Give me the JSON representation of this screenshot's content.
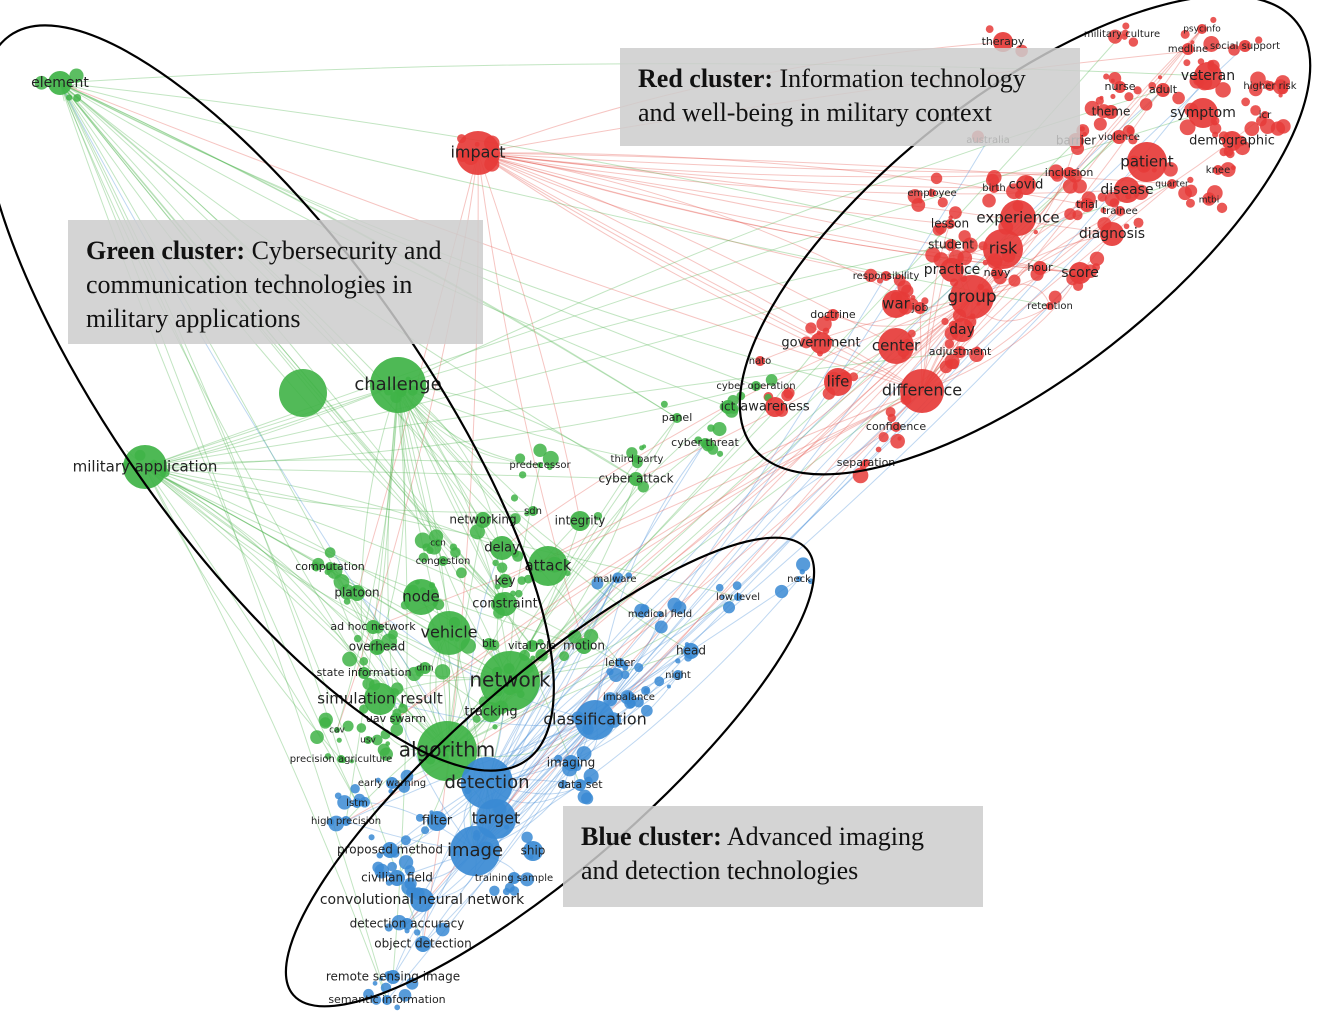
{
  "clusters": [
    {
      "name": "Red cluster:",
      "description": "Information technology and well-being in military context",
      "nodes": [
        "therapy",
        "military culture",
        "psycinfo",
        "medline",
        "social support",
        "nurse",
        "adult",
        "veteran",
        "higher risk",
        "theme",
        "symptom",
        "icr",
        "australia",
        "barrier",
        "violence",
        "demographic",
        "patient",
        "inclusion",
        "knee",
        "birth",
        "covid",
        "quarter",
        "disease",
        "employee",
        "trial",
        "mtbi",
        "trainee",
        "lesson",
        "experience",
        "diagnosis",
        "student",
        "risk",
        "responsibility",
        "practice",
        "navy",
        "hour",
        "score",
        "war",
        "job",
        "group",
        "retention",
        "doctrine",
        "day",
        "government",
        "center",
        "adjustment",
        "nato",
        "life",
        "difference",
        "confidence",
        "separation",
        "impact",
        "awareness"
      ]
    },
    {
      "name": "Green cluster:",
      "description": "Cybersecurity and communication technologies in military applications",
      "nodes": [
        "element",
        "challenge",
        "military application",
        "predecessor",
        "third party",
        "cyber attack",
        "cyber threat",
        "panel",
        "ict",
        "cyber operation",
        "networking",
        "sdn",
        "integrity",
        "ccn",
        "delay",
        "congestion",
        "computation",
        "attack",
        "key",
        "platoon",
        "node",
        "constraint",
        "ad hoc network",
        "vehicle",
        "bit",
        "vital role",
        "motion",
        "overhead",
        "state information",
        "dnn",
        "network",
        "simulation result",
        "tracking",
        "uav swarm",
        "cav",
        "usv",
        "algorithm",
        "precision agriculture"
      ]
    },
    {
      "name": "Blue cluster:",
      "description": "Advanced imaging and detection technologies",
      "nodes": [
        "malware",
        "neck",
        "low level",
        "medical field",
        "head",
        "letter",
        "night",
        "imbalance",
        "classification",
        "imaging",
        "detection",
        "data set",
        "early warning",
        "lstm",
        "high precision",
        "filter",
        "target",
        "proposed method",
        "image",
        "ship",
        "civilian field",
        "training sample",
        "convolutional neural network",
        "detection accuracy",
        "object detection",
        "remote sensing image",
        "semantic information"
      ]
    }
  ]
}
